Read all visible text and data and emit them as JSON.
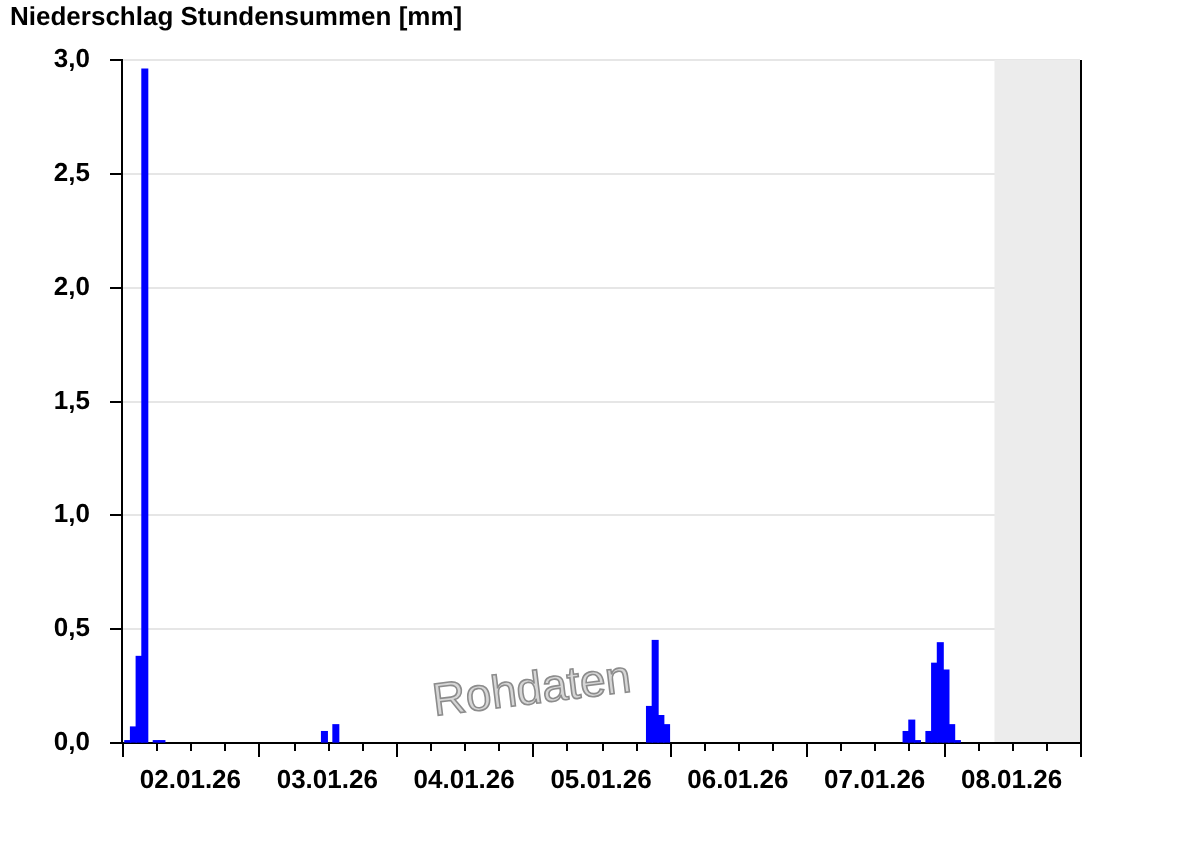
{
  "chart_data": {
    "type": "bar",
    "title": "Niederschlag Stundensummen [mm]",
    "x": [
      "--01-02T01:00",
      "--01-02T02:00",
      "--01-02T03:00",
      "--01-02T04:00",
      "--01-02T06:00",
      "--01-02T07:00",
      "--01-03T11:30",
      "--01-03T13:30",
      "--01-05T20:30",
      "--01-05T21:30",
      "--01-05T22:30",
      "--01-05T23:30",
      "--01-07T17:30",
      "--01-07T18:30",
      "--01-07T19:30",
      "--01-07T21:30",
      "--01-07T22:30",
      "--01-07T23:30",
      "--01-08T00:30",
      "--01-08T01:30",
      "--01-08T02:30"
    ],
    "values": [
      0.01,
      0.07,
      0.38,
      2.96,
      0.01,
      0.01,
      0.05,
      0.08,
      0.16,
      0.45,
      0.12,
      0.08,
      0.05,
      0.1,
      0.01,
      0.05,
      0.35,
      0.44,
      0.32,
      0.08,
      0.01
    ],
    "color": "#0000ff",
    "xlim": [
      "--01-02T00:00",
      "--01-09T00:00"
    ],
    "xticks": [
      {
        "value": "--01-02T00:00",
        "label": null
      },
      {
        "value": "--01-02T06:00",
        "label": null
      },
      {
        "value": "--01-02T12:00",
        "label": "02.01.26"
      },
      {
        "value": "--01-02T18:00",
        "label": null
      },
      {
        "value": "--01-03T00:00",
        "label": null
      },
      {
        "value": "--01-03T06:00",
        "label": null
      },
      {
        "value": "--01-03T12:00",
        "label": "03.01.26"
      },
      {
        "value": "--01-03T18:00",
        "label": null
      },
      {
        "value": "--01-04T00:00",
        "label": null
      },
      {
        "value": "--01-04T06:00",
        "label": null
      },
      {
        "value": "--01-04T12:00",
        "label": "04.01.26"
      },
      {
        "value": "--01-04T18:00",
        "label": null
      },
      {
        "value": "--01-05T00:00",
        "label": null
      },
      {
        "value": "--01-05T06:00",
        "label": null
      },
      {
        "value": "--01-05T12:00",
        "label": "05.01.26"
      },
      {
        "value": "--01-05T18:00",
        "label": null
      },
      {
        "value": "--01-06T00:00",
        "label": null
      },
      {
        "value": "--01-06T06:00",
        "label": null
      },
      {
        "value": "--01-06T12:00",
        "label": "06.01.26"
      },
      {
        "value": "--01-06T18:00",
        "label": null
      },
      {
        "value": "--01-07T00:00",
        "label": null
      },
      {
        "value": "--01-07T06:00",
        "label": null
      },
      {
        "value": "--01-07T12:00",
        "label": "07.01.26"
      },
      {
        "value": "--01-07T18:00",
        "label": null
      },
      {
        "value": "--01-08T00:00",
        "label": null
      },
      {
        "value": "--01-08T06:00",
        "label": null
      },
      {
        "value": "--01-08T12:00",
        "label": "08.01.26"
      },
      {
        "value": "--01-08T18:00",
        "label": null
      },
      {
        "value": "--01-09T00:00",
        "label": null
      }
    ],
    "ylim": [
      0,
      3
    ],
    "yticks": [
      {
        "value": 0,
        "label": "0,0"
      },
      {
        "value": 0.5,
        "label": "0,5"
      },
      {
        "value": 1,
        "label": "1,0"
      },
      {
        "value": 1.5,
        "label": "1,5"
      },
      {
        "value": 2,
        "label": "2,0"
      },
      {
        "value": 2.5,
        "label": "2,5"
      },
      {
        "value": 3,
        "label": "3,0"
      }
    ],
    "grid": "y",
    "bands": [
      {
        "axis": "x",
        "from": "--01-08T09:00",
        "to": "--01-09T00:00",
        "color": "#ececec"
      }
    ],
    "annotations": [
      "Rohdaten"
    ]
  }
}
